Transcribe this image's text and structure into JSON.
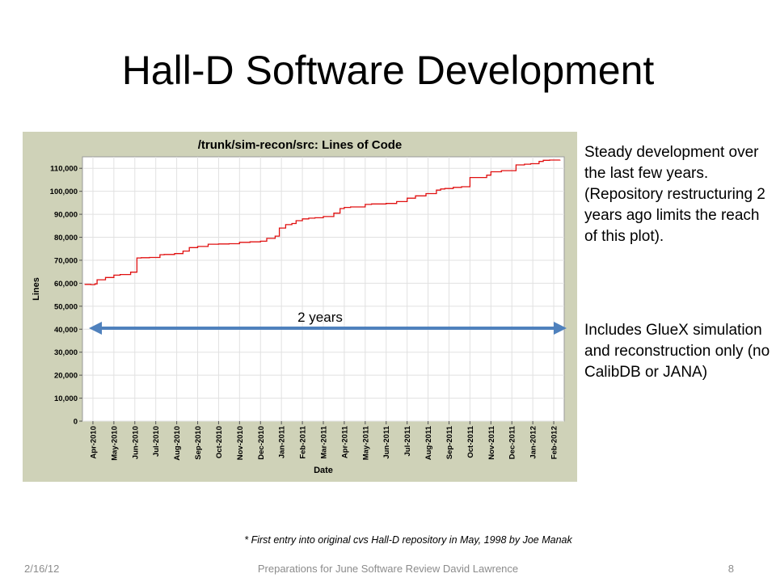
{
  "slide": {
    "title": "Hall-D Software Development",
    "notes": [
      "Steady development over the last few years. (Repository restructuring 2 years ago limits the reach of this plot).",
      "Includes GlueX simulation and reconstruction only (no CalibDB or JANA)"
    ],
    "footnote": "* First entry into original cvs Hall-D repository in May, 1998 by Joe Manak",
    "footer": {
      "date": "2/16/12",
      "center": "Preparations for June Software Review   David Lawrence",
      "page": "8"
    }
  },
  "colors": {
    "chart_background": "#cfd2b8",
    "plot_background": "#ffffff",
    "grid": "#e1e1e1",
    "series": "#e01010",
    "arrow": "#4f81bd"
  },
  "annotation": {
    "label": "2 years",
    "from": "Apr-2010",
    "to": "Feb-2012"
  },
  "chart_data": {
    "type": "line",
    "title": "/trunk/sim-recon/src: Lines of Code",
    "xlabel": "Date",
    "ylabel": "Lines",
    "ylim": [
      0,
      115000
    ],
    "yticks": [
      0,
      10000,
      20000,
      30000,
      40000,
      50000,
      60000,
      70000,
      80000,
      90000,
      100000,
      110000
    ],
    "ytick_labels": [
      "0",
      "10,000",
      "20,000",
      "30,000",
      "40,000",
      "50,000",
      "60,000",
      "70,000",
      "80,000",
      "90,000",
      "100,000",
      "110,000"
    ],
    "xtick_labels": [
      "Apr-2010",
      "May-2010",
      "Jun-2010",
      "Jul-2010",
      "Aug-2010",
      "Sep-2010",
      "Oct-2010",
      "Nov-2010",
      "Dec-2010",
      "Jan-2011",
      "Feb-2011",
      "Mar-2011",
      "Apr-2011",
      "May-2011",
      "Jun-2011",
      "Jul-2011",
      "Aug-2011",
      "Sep-2011",
      "Oct-2011",
      "Nov-2011",
      "Dec-2011",
      "Jan-2012",
      "Feb-2012"
    ],
    "x_range_months": [
      -0.5,
      22.5
    ],
    "grid": true,
    "legend": "none",
    "series": [
      {
        "x": [
          -0.4,
          -0.1,
          0.1,
          0.2,
          0.6,
          1.0,
          1.3,
          1.8,
          2.1,
          2.3,
          2.7,
          3.2,
          3.4,
          3.9,
          4.3,
          4.6,
          5.0,
          5.5,
          6.0,
          6.5,
          7.0,
          7.5,
          8.0,
          8.3,
          8.7,
          8.9,
          9.2,
          9.5,
          9.7,
          10.0,
          10.3,
          10.6,
          11.0,
          11.5,
          11.8,
          12.0,
          12.3,
          13.0,
          13.3,
          14.0,
          14.5,
          15.0,
          15.4,
          15.9,
          16.4,
          16.6,
          16.8,
          17.2,
          17.6,
          18.0,
          18.8,
          19.0,
          19.5,
          20.2,
          20.6,
          20.9,
          21.3,
          21.5,
          21.8,
          22.3
        ],
        "y": [
          59500,
          59400,
          59700,
          61500,
          62500,
          63500,
          63800,
          64800,
          71000,
          71100,
          71200,
          72400,
          72500,
          72900,
          74000,
          75500,
          76000,
          77000,
          77100,
          77200,
          77800,
          78000,
          78300,
          79500,
          80500,
          84000,
          85500,
          86000,
          87200,
          88000,
          88300,
          88500,
          89000,
          90500,
          92500,
          93000,
          93200,
          94300,
          94500,
          94700,
          95500,
          97000,
          98000,
          99000,
          100500,
          101000,
          101200,
          101700,
          102000,
          106000,
          107000,
          108500,
          109000,
          111500,
          111800,
          112000,
          113000,
          113500,
          113600,
          113700
        ]
      }
    ]
  }
}
